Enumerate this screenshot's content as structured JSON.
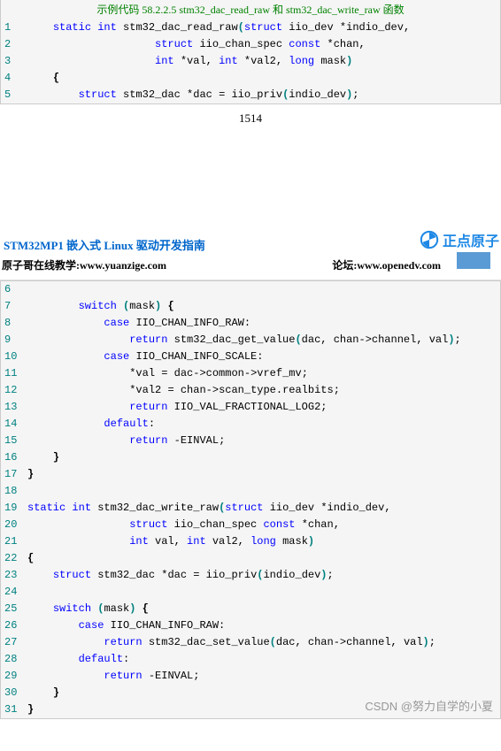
{
  "caption": "示例代码 58.2.2.5 stm32_dac_read_raw 和 stm32_dac_write_raw 函数",
  "page_num": "1514",
  "header": {
    "title": "STM32MP1 嵌入式 Linux 驱动开发指南",
    "logo_text": "正点原子",
    "sub_left_label": "原子哥在线教学:",
    "sub_left_url": "www.yuanzige.com",
    "sub_right_label": "论坛:",
    "sub_right_url": "www.openedv.com"
  },
  "watermark": "CSDN @努力自学的小夏",
  "colors": {
    "keyword": "#0000ff",
    "paren": "#008080",
    "lineno": "#008080",
    "caption": "#008000",
    "code_bg": "#f5f5f5",
    "code_border": "#cccccc",
    "header_title": "#0066cc",
    "logo": "#1e88e5",
    "blue_rect": "#5b9bd5"
  },
  "code1": [
    {
      "n": "1",
      "indent": 1,
      "tokens": [
        [
          "kw",
          "static"
        ],
        [
          "sp",
          " "
        ],
        [
          "kw",
          "int"
        ],
        [
          "sp",
          " "
        ],
        [
          "ident",
          "stm32_dac_read_raw"
        ],
        [
          "paren",
          "("
        ],
        [
          "kw",
          "struct"
        ],
        [
          "sp",
          " "
        ],
        [
          "ident",
          "iio_dev"
        ],
        [
          "sp",
          " "
        ],
        [
          "op",
          "*"
        ],
        [
          "ident",
          "indio_dev"
        ],
        [
          "op",
          ","
        ]
      ]
    },
    {
      "n": "2",
      "indent": 5,
      "tokens": [
        [
          "kw",
          "struct"
        ],
        [
          "sp",
          " "
        ],
        [
          "ident",
          "iio_chan_spec"
        ],
        [
          "sp",
          " "
        ],
        [
          "kw",
          "const"
        ],
        [
          "sp",
          " "
        ],
        [
          "op",
          "*"
        ],
        [
          "ident",
          "chan"
        ],
        [
          "op",
          ","
        ]
      ]
    },
    {
      "n": "3",
      "indent": 5,
      "tokens": [
        [
          "kw",
          "int"
        ],
        [
          "sp",
          " "
        ],
        [
          "op",
          "*"
        ],
        [
          "ident",
          "val"
        ],
        [
          "op",
          ","
        ],
        [
          "sp",
          " "
        ],
        [
          "kw",
          "int"
        ],
        [
          "sp",
          " "
        ],
        [
          "op",
          "*"
        ],
        [
          "ident",
          "val2"
        ],
        [
          "op",
          ","
        ],
        [
          "sp",
          " "
        ],
        [
          "kw",
          "long"
        ],
        [
          "sp",
          " "
        ],
        [
          "ident",
          "mask"
        ],
        [
          "paren",
          ")"
        ]
      ]
    },
    {
      "n": "4",
      "indent": 1,
      "tokens": [
        [
          "brace",
          "{"
        ]
      ]
    },
    {
      "n": "5",
      "indent": 2,
      "tokens": [
        [
          "kw",
          "struct"
        ],
        [
          "sp",
          " "
        ],
        [
          "ident",
          "stm32_dac"
        ],
        [
          "sp",
          " "
        ],
        [
          "op",
          "*"
        ],
        [
          "ident",
          "dac"
        ],
        [
          "sp",
          " "
        ],
        [
          "op",
          "="
        ],
        [
          "sp",
          " "
        ],
        [
          "ident",
          "iio_priv"
        ],
        [
          "paren",
          "("
        ],
        [
          "ident",
          "indio_dev"
        ],
        [
          "paren",
          ")"
        ],
        [
          "op",
          ";"
        ]
      ]
    }
  ],
  "code2": [
    {
      "n": "6",
      "indent": 0,
      "tokens": []
    },
    {
      "n": "7",
      "indent": 2,
      "tokens": [
        [
          "kw",
          "switch"
        ],
        [
          "sp",
          " "
        ],
        [
          "paren",
          "("
        ],
        [
          "ident",
          "mask"
        ],
        [
          "paren",
          ")"
        ],
        [
          "sp",
          " "
        ],
        [
          "brace",
          "{"
        ]
      ]
    },
    {
      "n": "8",
      "indent": 3,
      "tokens": [
        [
          "kw",
          "case"
        ],
        [
          "sp",
          " "
        ],
        [
          "ident",
          "IIO_CHAN_INFO_RAW"
        ],
        [
          "op",
          ":"
        ]
      ]
    },
    {
      "n": "9",
      "indent": 4,
      "tokens": [
        [
          "kw",
          "return"
        ],
        [
          "sp",
          " "
        ],
        [
          "ident",
          "stm32_dac_get_value"
        ],
        [
          "paren",
          "("
        ],
        [
          "ident",
          "dac"
        ],
        [
          "op",
          ","
        ],
        [
          "sp",
          " "
        ],
        [
          "ident",
          "chan"
        ],
        [
          "op",
          "->"
        ],
        [
          "ident",
          "channel"
        ],
        [
          "op",
          ","
        ],
        [
          "sp",
          " "
        ],
        [
          "ident",
          "val"
        ],
        [
          "paren",
          ")"
        ],
        [
          "op",
          ";"
        ]
      ]
    },
    {
      "n": "10",
      "indent": 3,
      "tokens": [
        [
          "kw",
          "case"
        ],
        [
          "sp",
          " "
        ],
        [
          "ident",
          "IIO_CHAN_INFO_SCALE"
        ],
        [
          "op",
          ":"
        ]
      ]
    },
    {
      "n": "11",
      "indent": 4,
      "tokens": [
        [
          "op",
          "*"
        ],
        [
          "ident",
          "val"
        ],
        [
          "sp",
          " "
        ],
        [
          "op",
          "="
        ],
        [
          "sp",
          " "
        ],
        [
          "ident",
          "dac"
        ],
        [
          "op",
          "->"
        ],
        [
          "ident",
          "common"
        ],
        [
          "op",
          "->"
        ],
        [
          "ident",
          "vref_mv"
        ],
        [
          "op",
          ";"
        ]
      ]
    },
    {
      "n": "12",
      "indent": 4,
      "tokens": [
        [
          "op",
          "*"
        ],
        [
          "ident",
          "val2"
        ],
        [
          "sp",
          " "
        ],
        [
          "op",
          "="
        ],
        [
          "sp",
          " "
        ],
        [
          "ident",
          "chan"
        ],
        [
          "op",
          "->"
        ],
        [
          "ident",
          "scan_type"
        ],
        [
          "op",
          "."
        ],
        [
          "ident",
          "realbits"
        ],
        [
          "op",
          ";"
        ]
      ]
    },
    {
      "n": "13",
      "indent": 4,
      "tokens": [
        [
          "kw",
          "return"
        ],
        [
          "sp",
          " "
        ],
        [
          "ident",
          "IIO_VAL_FRACTIONAL_LOG2"
        ],
        [
          "op",
          ";"
        ]
      ]
    },
    {
      "n": "14",
      "indent": 3,
      "tokens": [
        [
          "kw",
          "default"
        ],
        [
          "op",
          ":"
        ]
      ]
    },
    {
      "n": "15",
      "indent": 4,
      "tokens": [
        [
          "kw",
          "return"
        ],
        [
          "sp",
          " "
        ],
        [
          "op",
          "-"
        ],
        [
          "ident",
          "EINVAL"
        ],
        [
          "op",
          ";"
        ]
      ]
    },
    {
      "n": "16",
      "indent": 1,
      "tokens": [
        [
          "brace",
          "}"
        ]
      ]
    },
    {
      "n": "17",
      "indent": 0,
      "tokens": [
        [
          "brace",
          "}"
        ]
      ]
    },
    {
      "n": "18",
      "indent": 0,
      "tokens": []
    },
    {
      "n": "19",
      "indent": 0,
      "tokens": [
        [
          "kw",
          "static"
        ],
        [
          "sp",
          " "
        ],
        [
          "kw",
          "int"
        ],
        [
          "sp",
          " "
        ],
        [
          "ident",
          "stm32_dac_write_raw"
        ],
        [
          "paren",
          "("
        ],
        [
          "kw",
          "struct"
        ],
        [
          "sp",
          " "
        ],
        [
          "ident",
          "iio_dev"
        ],
        [
          "sp",
          " "
        ],
        [
          "op",
          "*"
        ],
        [
          "ident",
          "indio_dev"
        ],
        [
          "op",
          ","
        ]
      ]
    },
    {
      "n": "20",
      "indent": 4,
      "tokens": [
        [
          "kw",
          "struct"
        ],
        [
          "sp",
          " "
        ],
        [
          "ident",
          "iio_chan_spec"
        ],
        [
          "sp",
          " "
        ],
        [
          "kw",
          "const"
        ],
        [
          "sp",
          " "
        ],
        [
          "op",
          "*"
        ],
        [
          "ident",
          "chan"
        ],
        [
          "op",
          ","
        ]
      ]
    },
    {
      "n": "21",
      "indent": 4,
      "tokens": [
        [
          "kw",
          "int"
        ],
        [
          "sp",
          " "
        ],
        [
          "ident",
          "val"
        ],
        [
          "op",
          ","
        ],
        [
          "sp",
          " "
        ],
        [
          "kw",
          "int"
        ],
        [
          "sp",
          " "
        ],
        [
          "ident",
          "val2"
        ],
        [
          "op",
          ","
        ],
        [
          "sp",
          " "
        ],
        [
          "kw",
          "long"
        ],
        [
          "sp",
          " "
        ],
        [
          "ident",
          "mask"
        ],
        [
          "paren",
          ")"
        ]
      ]
    },
    {
      "n": "22",
      "indent": 0,
      "tokens": [
        [
          "brace",
          "{"
        ]
      ]
    },
    {
      "n": "23",
      "indent": 1,
      "tokens": [
        [
          "kw",
          "struct"
        ],
        [
          "sp",
          " "
        ],
        [
          "ident",
          "stm32_dac"
        ],
        [
          "sp",
          " "
        ],
        [
          "op",
          "*"
        ],
        [
          "ident",
          "dac"
        ],
        [
          "sp",
          " "
        ],
        [
          "op",
          "="
        ],
        [
          "sp",
          " "
        ],
        [
          "ident",
          "iio_priv"
        ],
        [
          "paren",
          "("
        ],
        [
          "ident",
          "indio_dev"
        ],
        [
          "paren",
          ")"
        ],
        [
          "op",
          ";"
        ]
      ]
    },
    {
      "n": "24",
      "indent": 0,
      "tokens": []
    },
    {
      "n": "25",
      "indent": 1,
      "tokens": [
        [
          "kw",
          "switch"
        ],
        [
          "sp",
          " "
        ],
        [
          "paren",
          "("
        ],
        [
          "ident",
          "mask"
        ],
        [
          "paren",
          ")"
        ],
        [
          "sp",
          " "
        ],
        [
          "brace",
          "{"
        ]
      ]
    },
    {
      "n": "26",
      "indent": 2,
      "tokens": [
        [
          "kw",
          "case"
        ],
        [
          "sp",
          " "
        ],
        [
          "ident",
          "IIO_CHAN_INFO_RAW"
        ],
        [
          "op",
          ":"
        ]
      ]
    },
    {
      "n": "27",
      "indent": 3,
      "tokens": [
        [
          "kw",
          "return"
        ],
        [
          "sp",
          " "
        ],
        [
          "ident",
          "stm32_dac_set_value"
        ],
        [
          "paren",
          "("
        ],
        [
          "ident",
          "dac"
        ],
        [
          "op",
          ","
        ],
        [
          "sp",
          " "
        ],
        [
          "ident",
          "chan"
        ],
        [
          "op",
          "->"
        ],
        [
          "ident",
          "channel"
        ],
        [
          "op",
          ","
        ],
        [
          "sp",
          " "
        ],
        [
          "ident",
          "val"
        ],
        [
          "paren",
          ")"
        ],
        [
          "op",
          ";"
        ]
      ]
    },
    {
      "n": "28",
      "indent": 2,
      "tokens": [
        [
          "kw",
          "default"
        ],
        [
          "op",
          ":"
        ]
      ]
    },
    {
      "n": "29",
      "indent": 3,
      "tokens": [
        [
          "kw",
          "return"
        ],
        [
          "sp",
          " "
        ],
        [
          "op",
          "-"
        ],
        [
          "ident",
          "EINVAL"
        ],
        [
          "op",
          ";"
        ]
      ]
    },
    {
      "n": "30",
      "indent": 1,
      "tokens": [
        [
          "brace",
          "}"
        ]
      ]
    },
    {
      "n": "31",
      "indent": 0,
      "tokens": [
        [
          "brace",
          "}"
        ]
      ]
    }
  ]
}
